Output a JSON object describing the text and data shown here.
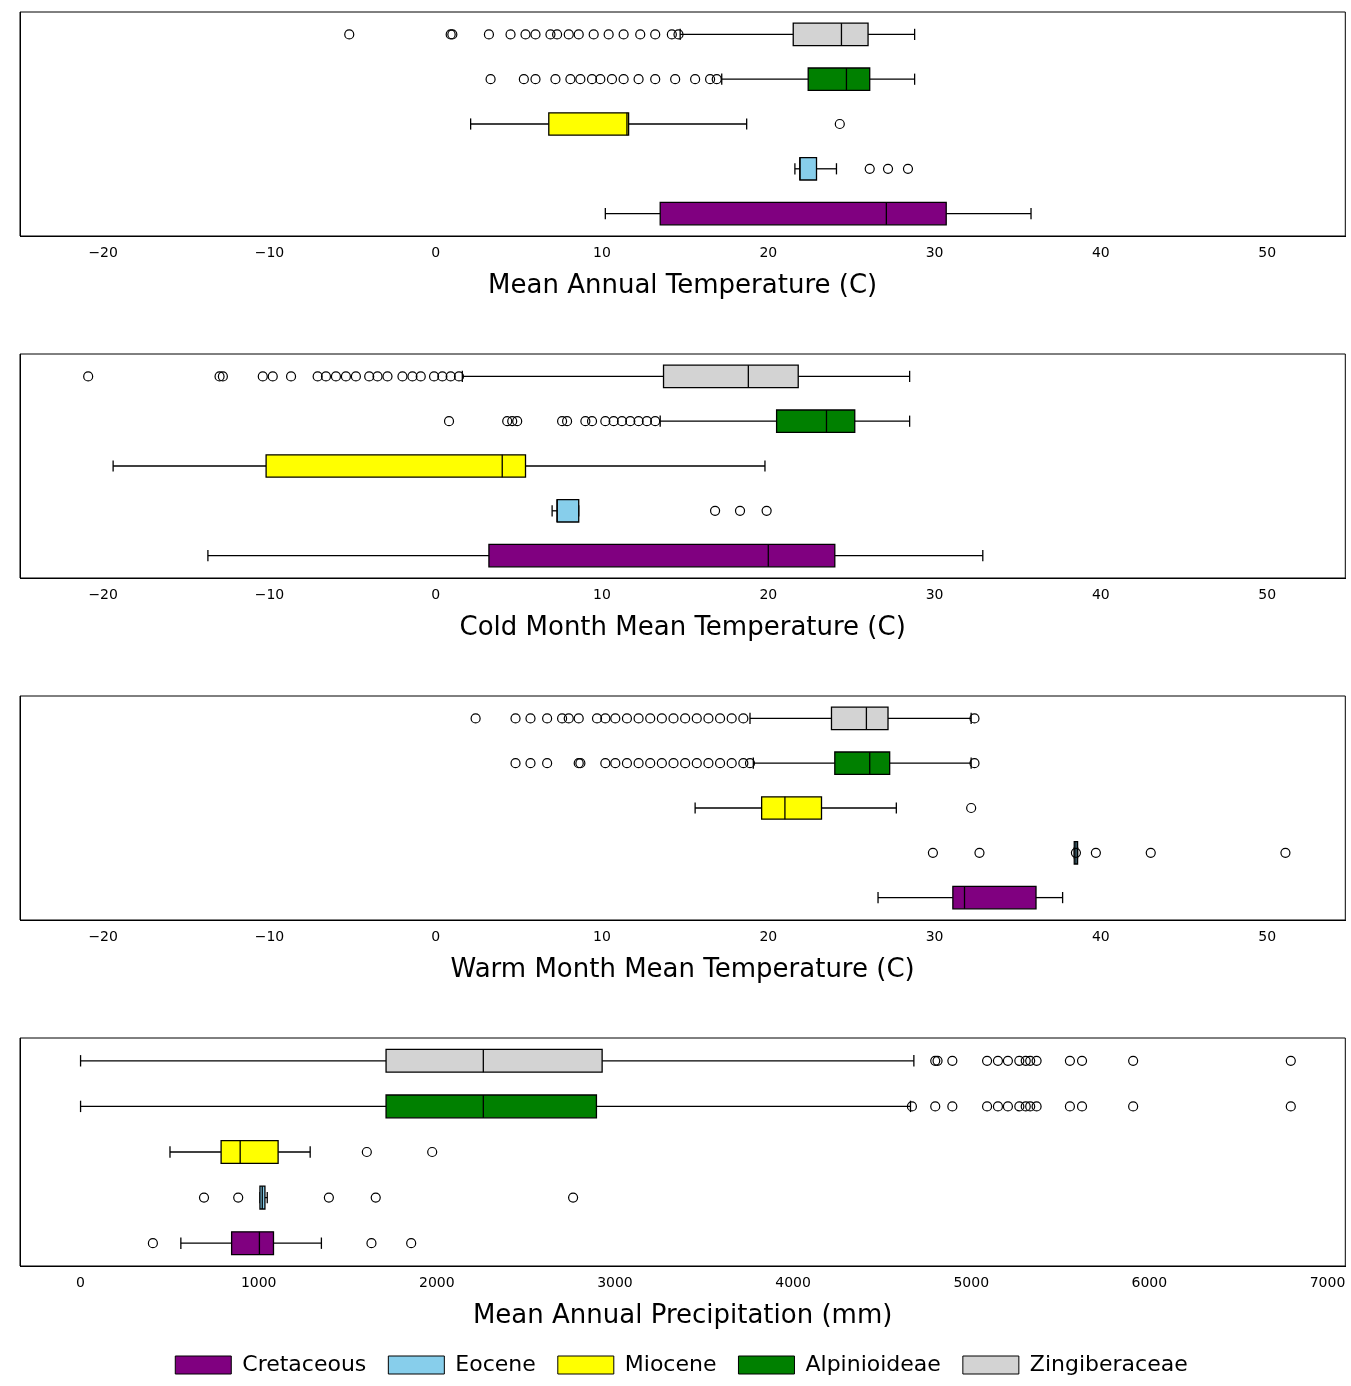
{
  "chart_data": [
    {
      "type": "box",
      "orientation": "horizontal",
      "xlabel": "Mean Annual Temperature (C)",
      "categories": [
        null,
        null,
        null,
        null,
        null
      ],
      "xlim": [
        -25,
        54.7
      ],
      "xticks": [
        -20,
        -10,
        0,
        10,
        20,
        30,
        40,
        50
      ],
      "series": [
        {
          "color": "#800080",
          "boxes": [
            null,
            null,
            null,
            null,
            {
              "low": 10.2,
              "q1": 13.5,
              "median": 27.1,
              "q3": 30.7,
              "high": 35.8
            }
          ]
        },
        {
          "color": "#87ceeb",
          "boxes": [
            null,
            null,
            null,
            {
              "low": 21.6,
              "q1": 21.9,
              "median": 21.9,
              "q3": 22.9,
              "high": 24.1,
              "outliers": [
                26.1,
                27.2,
                28.4
              ]
            },
            null
          ]
        },
        {
          "color": "#ffff00",
          "boxes": [
            null,
            null,
            {
              "low": 2.1,
              "q1": 6.8,
              "median": 11.5,
              "q3": 11.6,
              "high": 18.7,
              "outliers": [
                24.3
              ]
            },
            null,
            null
          ]
        },
        {
          "color": "#008000",
          "boxes": [
            null,
            {
              "low": 17.2,
              "q1": 22.4,
              "median": 24.7,
              "q3": 26.1,
              "high": 28.8,
              "outliers": [
                3.3,
                5.3,
                6.0,
                7.2,
                8.1,
                8.7,
                9.4,
                9.9,
                10.6,
                11.3,
                12.2,
                13.2,
                14.4,
                15.6,
                16.5,
                16.9
              ]
            },
            null,
            null,
            null
          ]
        },
        {
          "color": "#d3d3d3",
          "boxes": [
            {
              "low": 14.7,
              "q1": 21.5,
              "median": 24.4,
              "q3": 26.0,
              "high": 28.8,
              "outliers": [
                -5.2,
                0.9,
                1.0,
                3.2,
                4.5,
                5.4,
                6.0,
                6.9,
                7.3,
                8.0,
                8.6,
                9.5,
                10.4,
                11.3,
                12.3,
                13.2,
                14.2,
                14.6
              ]
            },
            null,
            null,
            null,
            null
          ]
        }
      ]
    },
    {
      "type": "box",
      "orientation": "horizontal",
      "xlabel": "Cold Month Mean Temperature (C)",
      "categories": [
        null,
        null,
        null,
        null,
        null
      ],
      "xlim": [
        -25,
        54.7
      ],
      "xticks": [
        -20,
        -10,
        0,
        10,
        20,
        30,
        40,
        50
      ],
      "series": [
        {
          "color": "#800080",
          "boxes": [
            null,
            null,
            null,
            null,
            {
              "low": -13.7,
              "q1": 3.2,
              "median": 20.0,
              "q3": 24.0,
              "high": 32.9
            }
          ]
        },
        {
          "color": "#87ceeb",
          "boxes": [
            null,
            null,
            null,
            {
              "low": 7.0,
              "q1": 7.3,
              "median": 7.3,
              "q3": 8.6,
              "high": 8.6,
              "outliers": [
                16.8,
                18.3,
                19.9
              ]
            },
            null
          ]
        },
        {
          "color": "#ffff00",
          "boxes": [
            null,
            null,
            {
              "low": -19.4,
              "q1": -10.2,
              "median": 4.0,
              "q3": 5.4,
              "high": 19.8
            },
            null,
            null
          ]
        },
        {
          "color": "#008000",
          "boxes": [
            null,
            {
              "low": 13.5,
              "q1": 20.5,
              "median": 23.5,
              "q3": 25.2,
              "high": 28.5,
              "outliers": [
                0.8,
                4.3,
                4.6,
                4.9,
                7.6,
                7.9,
                9.0,
                9.4,
                10.2,
                10.7,
                11.2,
                11.7,
                12.2,
                12.7,
                13.2
              ]
            },
            null,
            null,
            null
          ]
        },
        {
          "color": "#d3d3d3",
          "boxes": [
            {
              "low": 1.6,
              "q1": 13.7,
              "median": 18.8,
              "q3": 21.8,
              "high": 28.5,
              "outliers": [
                -20.9,
                -13.0,
                -12.8,
                -10.4,
                -9.8,
                -8.7,
                -7.1,
                -6.6,
                -6.0,
                -5.4,
                -4.8,
                -4.0,
                -3.5,
                -2.9,
                -2.0,
                -1.4,
                -0.9,
                -0.1,
                0.4,
                0.9,
                1.4
              ]
            },
            null,
            null,
            null,
            null
          ]
        }
      ]
    },
    {
      "type": "box",
      "orientation": "horizontal",
      "xlabel": "Warm Month Mean Temperature (C)",
      "categories": [
        null,
        null,
        null,
        null,
        null
      ],
      "xlim": [
        -25,
        54.7
      ],
      "xticks": [
        -20,
        -10,
        0,
        10,
        20,
        30,
        40,
        50
      ],
      "series": [
        {
          "color": "#800080",
          "boxes": [
            null,
            null,
            null,
            null,
            {
              "low": 26.6,
              "q1": 31.1,
              "median": 31.8,
              "q3": 36.1,
              "high": 37.7
            }
          ]
        },
        {
          "color": "#87ceeb",
          "boxes": [
            null,
            null,
            null,
            {
              "low": 38.4,
              "q1": 38.4,
              "median": 38.5,
              "q3": 38.6,
              "high": 38.6,
              "outliers": [
                29.9,
                32.7,
                38.5,
                39.7,
                43.0,
                51.1
              ]
            },
            null
          ]
        },
        {
          "color": "#ffff00",
          "boxes": [
            null,
            null,
            {
              "low": 15.6,
              "q1": 19.6,
              "median": 21.0,
              "q3": 23.2,
              "high": 27.7,
              "outliers": [
                32.2
              ]
            },
            null,
            null
          ]
        },
        {
          "color": "#008000",
          "boxes": [
            null,
            {
              "low": 19.1,
              "q1": 24.0,
              "median": 26.1,
              "q3": 27.3,
              "high": 32.2,
              "outliers": [
                4.8,
                5.7,
                6.7,
                8.6,
                8.7,
                10.2,
                10.8,
                11.5,
                12.2,
                12.9,
                13.6,
                14.3,
                15.0,
                15.7,
                16.4,
                17.1,
                17.8,
                18.5,
                18.9,
                32.4
              ]
            },
            null,
            null,
            null
          ]
        },
        {
          "color": "#d3d3d3",
          "boxes": [
            {
              "low": 18.9,
              "q1": 23.8,
              "median": 25.9,
              "q3": 27.2,
              "high": 32.2,
              "outliers": [
                2.4,
                4.8,
                5.7,
                6.7,
                7.6,
                8.0,
                8.6,
                9.7,
                10.2,
                10.8,
                11.5,
                12.2,
                12.9,
                13.6,
                14.3,
                15.0,
                15.7,
                16.4,
                17.1,
                17.8,
                18.5,
                32.4
              ]
            },
            null,
            null,
            null,
            null
          ]
        }
      ]
    },
    {
      "type": "box",
      "orientation": "horizontal",
      "xlabel": "Mean Annual Precipitation (mm)",
      "categories": [
        null,
        null,
        null,
        null,
        null
      ],
      "xlim": [
        -340,
        7100
      ],
      "xticks": [
        0,
        1000,
        2000,
        3000,
        4000,
        5000,
        6000,
        7000
      ],
      "legend": "bottom",
      "series": [
        {
          "name": "Cretaceous",
          "color": "#800080",
          "boxes": [
            null,
            null,
            null,
            null,
            {
              "low": 563,
              "q1": 848,
              "median": 1004,
              "q3": 1083,
              "high": 1352,
              "outliers": [
                406,
                1633,
                1856
              ]
            }
          ]
        },
        {
          "name": "Eocene",
          "color": "#87ceeb",
          "boxes": [
            null,
            null,
            null,
            {
              "low": 1007,
              "q1": 1007,
              "median": 1020,
              "q3": 1035,
              "high": 1048,
              "outliers": [
                693,
                885,
                1394,
                1657,
                2765
              ]
            },
            null
          ]
        },
        {
          "name": "Miocene",
          "color": "#ffff00",
          "boxes": [
            null,
            null,
            {
              "low": 502,
              "q1": 789,
              "median": 896,
              "q3": 1109,
              "high": 1289,
              "outliers": [
                1607,
                1974
              ]
            },
            null,
            null
          ]
        },
        {
          "name": "Alpinioideae",
          "color": "#008000",
          "boxes": [
            null,
            {
              "low": 0,
              "q1": 1715,
              "median": 2261,
              "q3": 2896,
              "high": 4659,
              "outliers": [
                4667,
                4798,
                4894,
                5089,
                5150,
                5206,
                5270,
                5306,
                5331,
                5367,
                5554,
                5622,
                5909,
                6794
              ]
            },
            null,
            null,
            null
          ]
        },
        {
          "name": "Zingiberaceae",
          "color": "#d3d3d3",
          "boxes": [
            {
              "low": 0,
              "q1": 1715,
              "median": 2261,
              "q3": 2928,
              "high": 4678,
              "outliers": [
                4798,
                4811,
                4894,
                5089,
                5150,
                5206,
                5270,
                5306,
                5331,
                5367,
                5554,
                5622,
                5909,
                6794
              ]
            },
            null,
            null,
            null,
            null
          ]
        }
      ]
    }
  ]
}
